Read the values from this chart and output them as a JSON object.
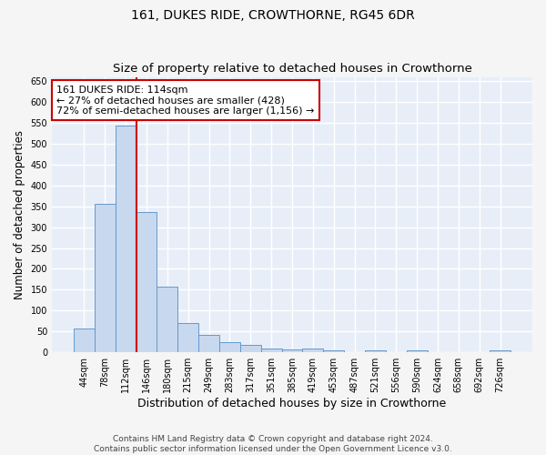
{
  "title": "161, DUKES RIDE, CROWTHORNE, RG45 6DR",
  "subtitle": "Size of property relative to detached houses in Crowthorne",
  "xlabel": "Distribution of detached houses by size in Crowthorne",
  "ylabel": "Number of detached properties",
  "bar_color": "#c8d8ee",
  "bar_edge_color": "#6699cc",
  "bar_values_full": [
    58,
    355,
    543,
    337,
    157,
    70,
    42,
    25,
    17,
    10,
    8,
    10,
    5,
    0,
    5,
    0,
    5,
    0,
    0,
    0,
    5
  ],
  "categories": [
    "44sqm",
    "78sqm",
    "112sqm",
    "146sqm",
    "180sqm",
    "215sqm",
    "249sqm",
    "283sqm",
    "317sqm",
    "351sqm",
    "385sqm",
    "419sqm",
    "453sqm",
    "487sqm",
    "521sqm",
    "556sqm",
    "590sqm",
    "624sqm",
    "658sqm",
    "692sqm",
    "726sqm"
  ],
  "ylim": [
    0,
    660
  ],
  "yticks": [
    0,
    50,
    100,
    150,
    200,
    250,
    300,
    350,
    400,
    450,
    500,
    550,
    600,
    650
  ],
  "annotation_text": "161 DUKES RIDE: 114sqm\n← 27% of detached houses are smaller (428)\n72% of semi-detached houses are larger (1,156) →",
  "annotation_box_color": "#ffffff",
  "annotation_box_edge": "#cc0000",
  "vline_color": "#cc0000",
  "background_color": "#e8eef8",
  "grid_color": "#ffffff",
  "fig_bg_color": "#f5f5f5",
  "footer_text": "Contains HM Land Registry data © Crown copyright and database right 2024.\nContains public sector information licensed under the Open Government Licence v3.0.",
  "title_fontsize": 10,
  "subtitle_fontsize": 9.5,
  "xlabel_fontsize": 9,
  "ylabel_fontsize": 8.5,
  "tick_fontsize": 7,
  "annotation_fontsize": 8,
  "footer_fontsize": 6.5
}
